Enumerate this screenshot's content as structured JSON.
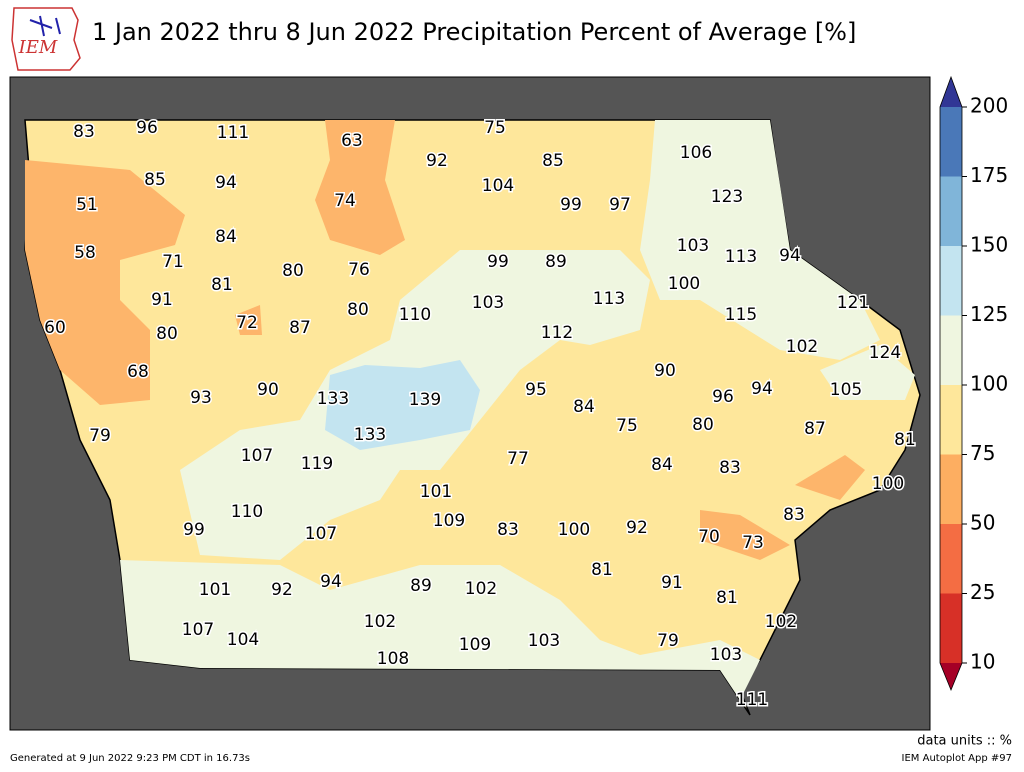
{
  "header": {
    "title": "1 Jan 2022 thru 8 Jun 2022 Precipitation Percent of Average [%]",
    "logo": "IEM"
  },
  "colorbar": {
    "ticks": [
      10,
      25,
      50,
      75,
      100,
      125,
      150,
      175,
      200
    ],
    "colors": [
      "#d73027",
      "#f46d43",
      "#fdae61",
      "#fee79b",
      "#eff6e0",
      "#c3e4f0",
      "#80b5d9",
      "#4a78b8"
    ],
    "under_color": "#a50026",
    "over_color": "#313695"
  },
  "map": {
    "values": [
      83,
      96,
      111,
      63,
      75,
      92,
      85,
      106,
      85,
      94,
      104,
      99,
      97,
      123,
      51,
      74,
      84,
      103,
      113,
      94,
      58,
      71,
      99,
      89,
      81,
      80,
      76,
      100,
      91,
      103,
      113,
      121,
      60,
      80,
      72,
      87,
      80,
      110,
      115,
      112,
      102,
      124,
      68,
      93,
      90,
      133,
      139,
      95,
      90,
      96,
      94,
      105,
      84,
      75,
      80,
      87,
      81,
      79,
      133,
      107,
      119,
      77,
      84,
      83,
      100,
      101,
      110,
      109,
      99,
      107,
      83,
      100,
      92,
      70,
      73,
      83,
      81,
      91,
      94,
      89,
      102,
      101,
      92,
      81,
      102,
      107,
      104,
      102,
      109,
      103,
      79,
      108,
      103,
      111
    ]
  },
  "footer": {
    "units": "data units :: %",
    "generated": "Generated at 9 Jun 2022 9:23 PM CDT in 16.73s",
    "app": "IEM Autoplot App #97"
  }
}
